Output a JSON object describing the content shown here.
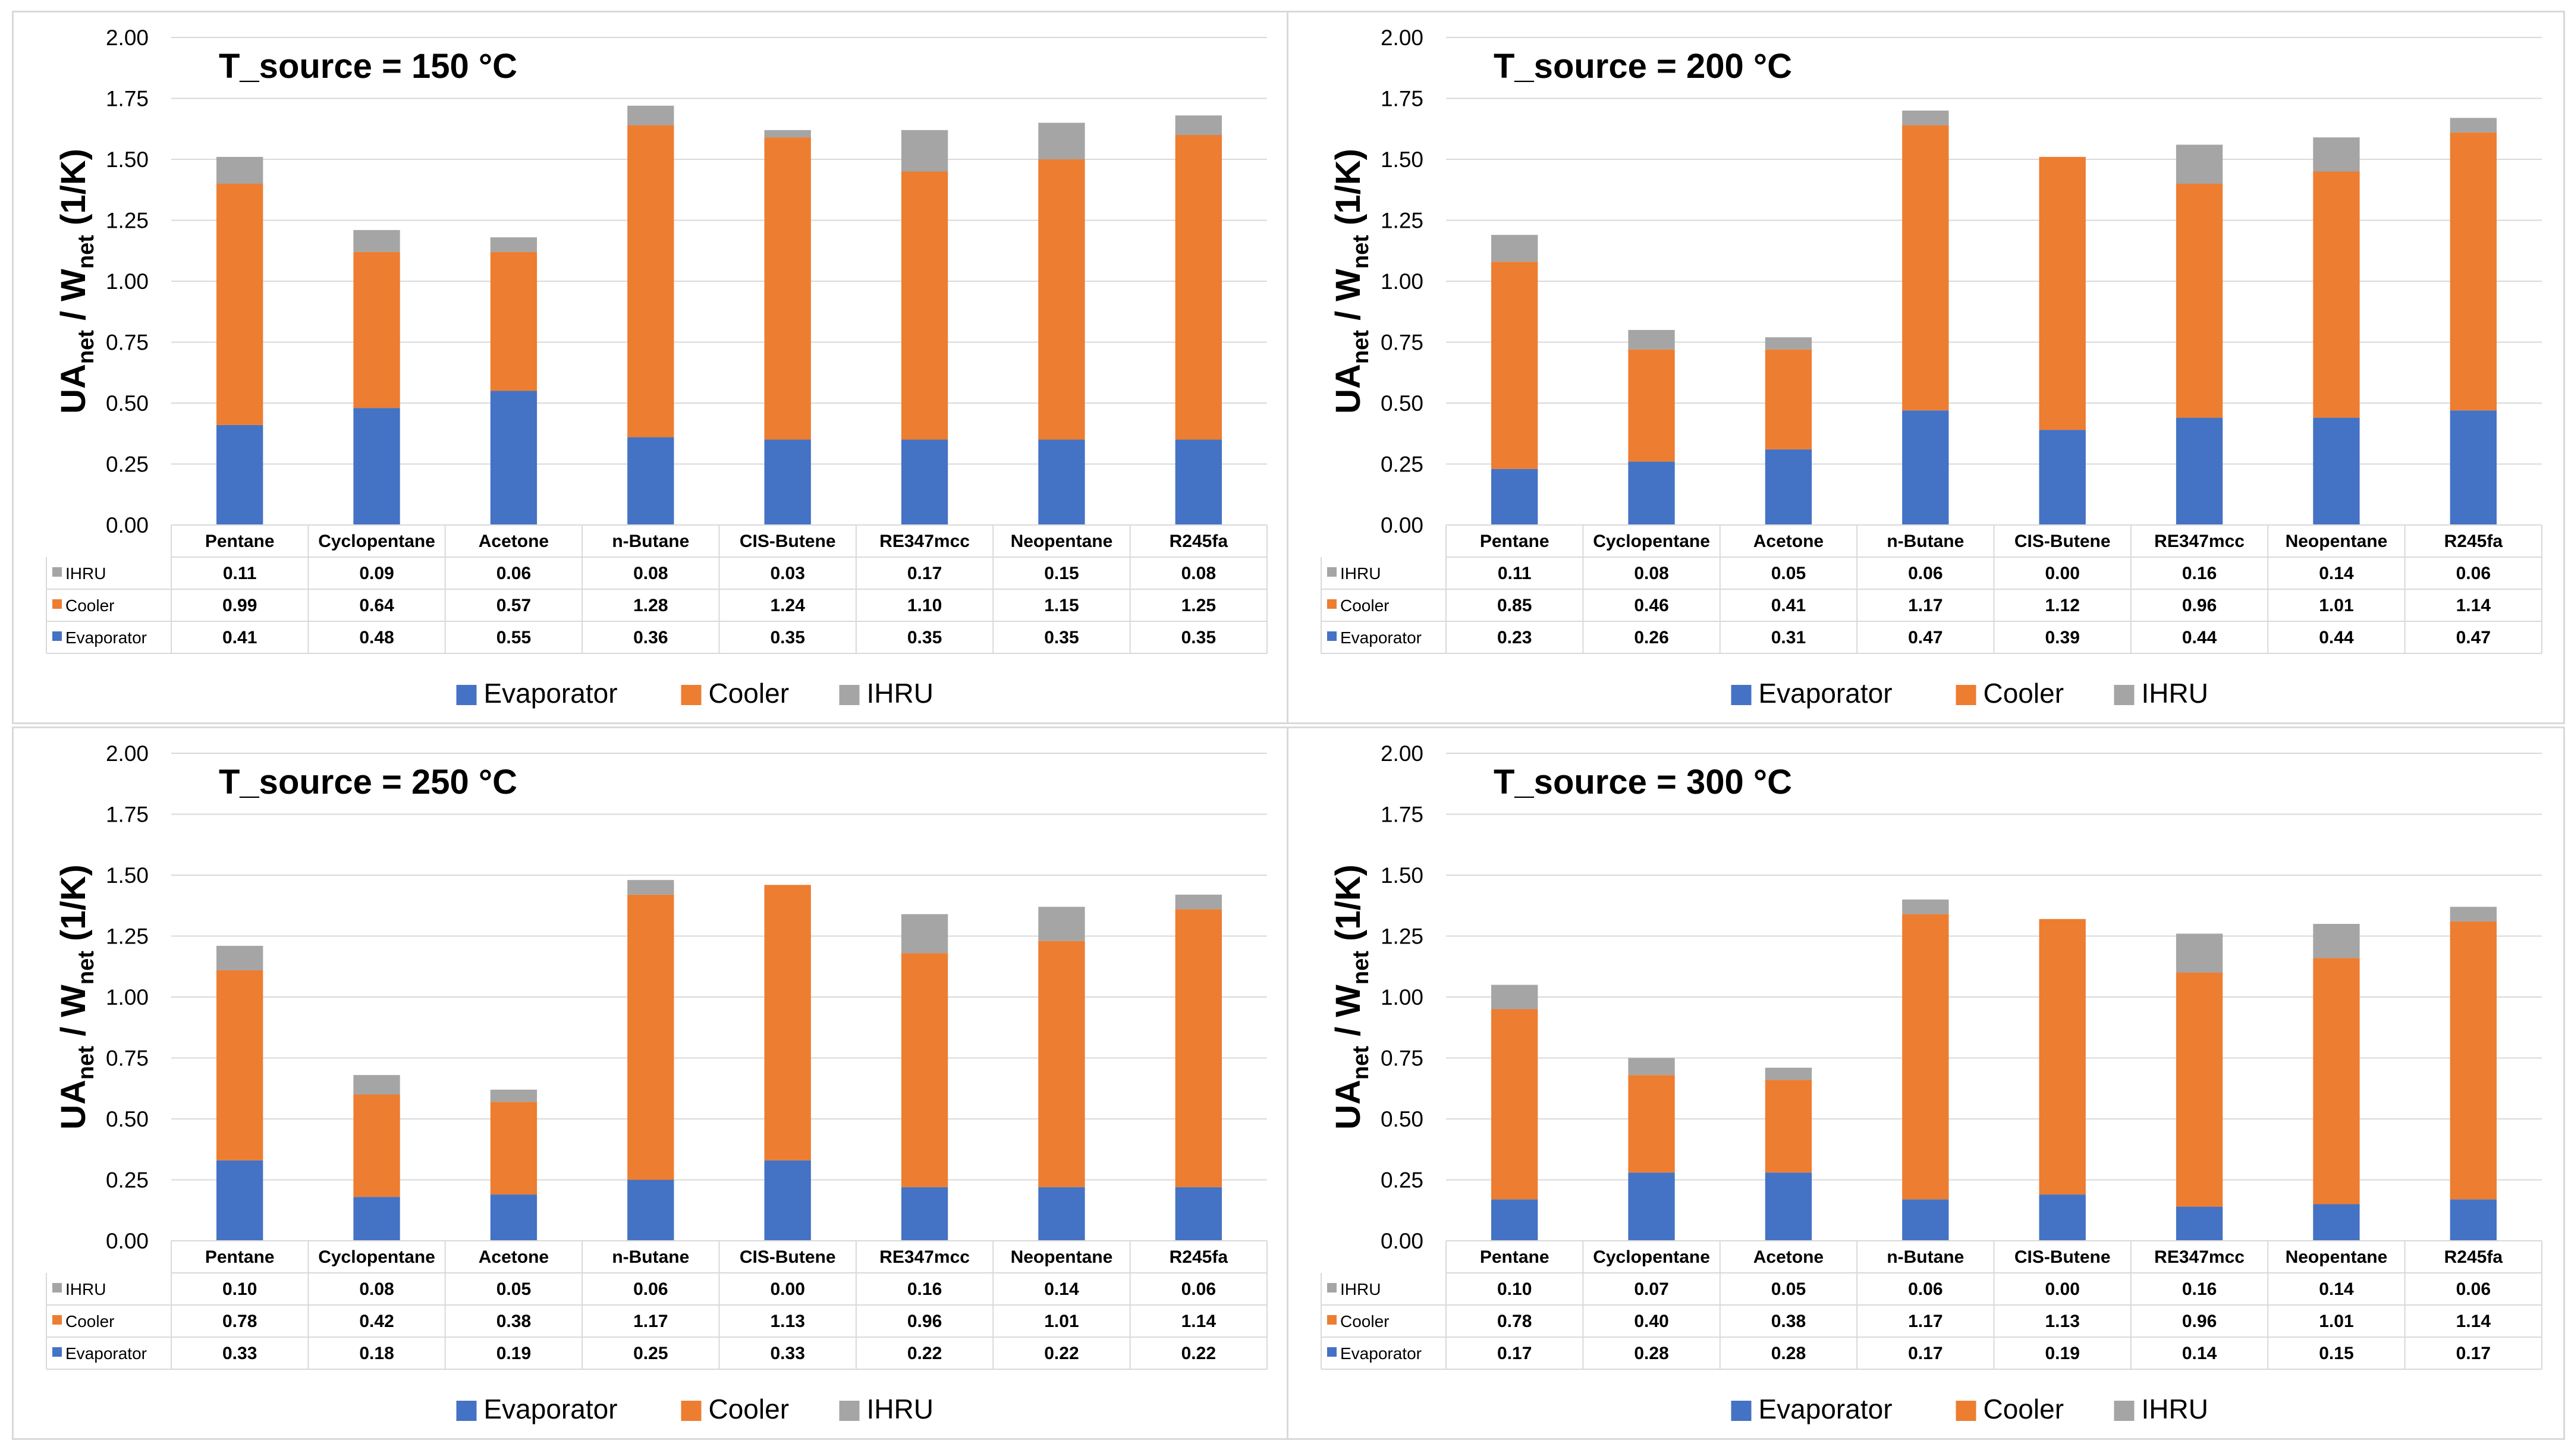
{
  "colors": {
    "evaporator": "#4472C4",
    "cooler": "#ED7D31",
    "ihru": "#A5A5A5",
    "grid": "#d9d9d9",
    "text": "#000000"
  },
  "y_axis_title": {
    "main": "UA",
    "sub1": "net",
    "mid": " / W",
    "sub2": "net",
    "unit": " (1/K)"
  },
  "chart_data": [
    {
      "type": "bar",
      "stacked": true,
      "title": "T_source = 150 °C",
      "categories": [
        "Pentane",
        "Cyclopentane",
        "Acetone",
        "n-Butane",
        "CIS-Butene",
        "RE347mcc",
        "Neopentane",
        "R245fa"
      ],
      "series": [
        {
          "name": "Evaporator",
          "values": [
            0.41,
            0.48,
            0.55,
            0.36,
            0.35,
            0.35,
            0.35,
            0.35
          ]
        },
        {
          "name": "Cooler",
          "values": [
            0.99,
            0.64,
            0.57,
            1.28,
            1.24,
            1.1,
            1.15,
            1.25
          ]
        },
        {
          "name": "IHRU",
          "values": [
            0.11,
            0.09,
            0.06,
            0.08,
            0.03,
            0.17,
            0.15,
            0.08
          ]
        }
      ],
      "ylim": [
        0,
        2.0
      ],
      "yticks": [
        "0.00",
        "0.25",
        "0.50",
        "0.75",
        "1.00",
        "1.25",
        "1.50",
        "1.75",
        "2.00"
      ],
      "table_rows": [
        {
          "name": "IHRU",
          "values": [
            "0.11",
            "0.09",
            "0.06",
            "0.08",
            "0.03",
            "0.17",
            "0.15",
            "0.08"
          ]
        },
        {
          "name": "Cooler",
          "values": [
            "0.99",
            "0.64",
            "0.57",
            "1.28",
            "1.24",
            "1.10",
            "1.15",
            "1.25"
          ]
        },
        {
          "name": "Evaporator",
          "values": [
            "0.41",
            "0.48",
            "0.55",
            "0.36",
            "0.35",
            "0.35",
            "0.35",
            "0.35"
          ]
        }
      ],
      "legend": [
        "Evaporator",
        "Cooler",
        "IHRU"
      ]
    },
    {
      "type": "bar",
      "stacked": true,
      "title": "T_source = 200 °C",
      "categories": [
        "Pentane",
        "Cyclopentane",
        "Acetone",
        "n-Butane",
        "CIS-Butene",
        "RE347mcc",
        "Neopentane",
        "R245fa"
      ],
      "series": [
        {
          "name": "Evaporator",
          "values": [
            0.23,
            0.26,
            0.31,
            0.47,
            0.39,
            0.44,
            0.44,
            0.47
          ]
        },
        {
          "name": "Cooler",
          "values": [
            0.85,
            0.46,
            0.41,
            1.17,
            1.12,
            0.96,
            1.01,
            1.14
          ]
        },
        {
          "name": "IHRU",
          "values": [
            0.11,
            0.08,
            0.05,
            0.06,
            0.0,
            0.16,
            0.14,
            0.06
          ]
        }
      ],
      "ylim": [
        0,
        2.0
      ],
      "yticks": [
        "0.00",
        "0.25",
        "0.50",
        "0.75",
        "1.00",
        "1.25",
        "1.50",
        "1.75",
        "2.00"
      ],
      "table_rows": [
        {
          "name": "IHRU",
          "values": [
            "0.11",
            "0.08",
            "0.05",
            "0.06",
            "0.00",
            "0.16",
            "0.14",
            "0.06"
          ]
        },
        {
          "name": "Cooler",
          "values": [
            "0.85",
            "0.46",
            "0.41",
            "1.17",
            "1.12",
            "0.96",
            "1.01",
            "1.14"
          ]
        },
        {
          "name": "Evaporator",
          "values": [
            "0.23",
            "0.26",
            "0.31",
            "0.47",
            "0.39",
            "0.44",
            "0.44",
            "0.47"
          ]
        }
      ],
      "legend": [
        "Evaporator",
        "Cooler",
        "IHRU"
      ]
    },
    {
      "type": "bar",
      "stacked": true,
      "title": "T_source = 250 °C",
      "categories": [
        "Pentane",
        "Cyclopentane",
        "Acetone",
        "n-Butane",
        "CIS-Butene",
        "RE347mcc",
        "Neopentane",
        "R245fa"
      ],
      "series": [
        {
          "name": "Evaporator",
          "values": [
            0.33,
            0.18,
            0.19,
            0.25,
            0.33,
            0.22,
            0.22,
            0.22
          ]
        },
        {
          "name": "Cooler",
          "values": [
            0.78,
            0.42,
            0.38,
            1.17,
            1.13,
            0.96,
            1.01,
            1.14
          ]
        },
        {
          "name": "IHRU",
          "values": [
            0.1,
            0.08,
            0.05,
            0.06,
            0.0,
            0.16,
            0.14,
            0.06
          ]
        }
      ],
      "ylim": [
        0,
        2.0
      ],
      "yticks": [
        "0.00",
        "0.25",
        "0.50",
        "0.75",
        "1.00",
        "1.25",
        "1.50",
        "1.75",
        "2.00"
      ],
      "table_rows": [
        {
          "name": "IHRU",
          "values": [
            "0.10",
            "0.08",
            "0.05",
            "0.06",
            "0.00",
            "0.16",
            "0.14",
            "0.06"
          ]
        },
        {
          "name": "Cooler",
          "values": [
            "0.78",
            "0.42",
            "0.38",
            "1.17",
            "1.13",
            "0.96",
            "1.01",
            "1.14"
          ]
        },
        {
          "name": "Evaporator",
          "values": [
            "0.33",
            "0.18",
            "0.19",
            "0.25",
            "0.33",
            "0.22",
            "0.22",
            "0.22"
          ]
        }
      ],
      "legend": [
        "Evaporator",
        "Cooler",
        "IHRU"
      ]
    },
    {
      "type": "bar",
      "stacked": true,
      "title": "T_source = 300 °C",
      "categories": [
        "Pentane",
        "Cyclopentane",
        "Acetone",
        "n-Butane",
        "CIS-Butene",
        "RE347mcc",
        "Neopentane",
        "R245fa"
      ],
      "series": [
        {
          "name": "Evaporator",
          "values": [
            0.17,
            0.28,
            0.28,
            0.17,
            0.19,
            0.14,
            0.15,
            0.17
          ]
        },
        {
          "name": "Cooler",
          "values": [
            0.78,
            0.4,
            0.38,
            1.17,
            1.13,
            0.96,
            1.01,
            1.14
          ]
        },
        {
          "name": "IHRU",
          "values": [
            0.1,
            0.07,
            0.05,
            0.06,
            0.0,
            0.16,
            0.14,
            0.06
          ]
        }
      ],
      "ylim": [
        0,
        2.0
      ],
      "yticks": [
        "0.00",
        "0.25",
        "0.50",
        "0.75",
        "1.00",
        "1.25",
        "1.50",
        "1.75",
        "2.00"
      ],
      "table_rows": [
        {
          "name": "IHRU",
          "values": [
            "0.10",
            "0.07",
            "0.05",
            "0.06",
            "0.00",
            "0.16",
            "0.14",
            "0.06"
          ]
        },
        {
          "name": "Cooler",
          "values": [
            "0.78",
            "0.40",
            "0.38",
            "1.17",
            "1.13",
            "0.96",
            "1.01",
            "1.14"
          ]
        },
        {
          "name": "Evaporator",
          "values": [
            "0.17",
            "0.28",
            "0.28",
            "0.17",
            "0.19",
            "0.14",
            "0.15",
            "0.17"
          ]
        }
      ],
      "legend": [
        "Evaporator",
        "Cooler",
        "IHRU"
      ]
    }
  ]
}
